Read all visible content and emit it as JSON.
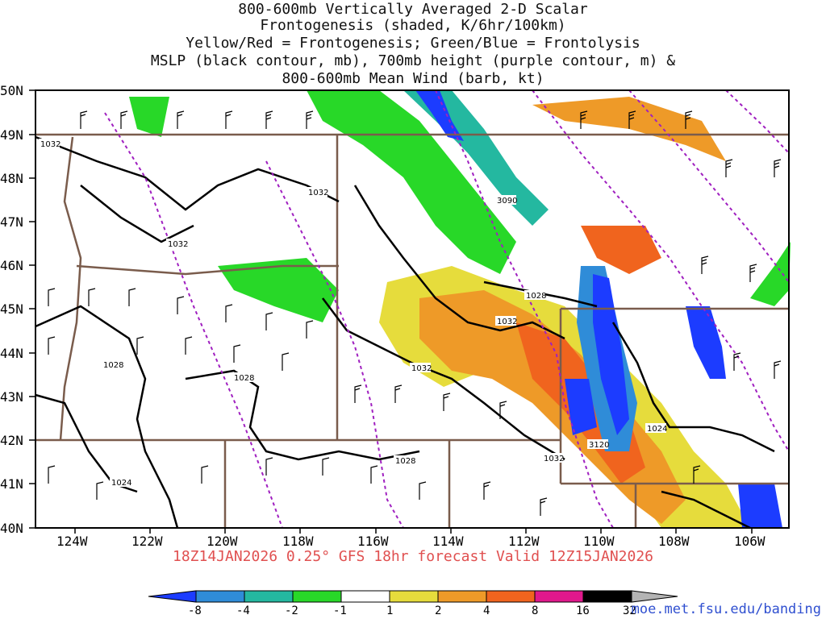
{
  "titles": [
    "800-600mb Vertically Averaged 2-D Scalar",
    "Frontogenesis (shaded, K/6hr/100km)",
    "Yellow/Red = Frontogenesis;  Green/Blue = Frontolysis",
    "MSLP (black contour, mb), 700mb height (purple contour, m) &",
    "800-600mb Mean Wind (barb, kt)"
  ],
  "lat_labels": [
    "50N",
    "49N",
    "48N",
    "47N",
    "46N",
    "45N",
    "44N",
    "43N",
    "42N",
    "41N",
    "40N"
  ],
  "lon_labels": [
    "124W",
    "122W",
    "120W",
    "118W",
    "116W",
    "114W",
    "112W",
    "110W",
    "108W",
    "106W"
  ],
  "contour_labels": {
    "mslp": [
      "1032",
      "1032",
      "1032",
      "1028",
      "1028",
      "1032",
      "1028",
      "1024",
      "1024",
      "1032",
      "1032",
      "1028"
    ],
    "height": [
      "3090",
      "3120"
    ]
  },
  "valid_line": "18Z14JAN2026 0.25° GFS 18hr forecast Valid 12Z15JAN2026",
  "colorbar": {
    "labels": [
      "-8",
      "-4",
      "-2",
      "-1",
      "1",
      "2",
      "4",
      "8",
      "16",
      "32"
    ],
    "colors": [
      "#1c3cff",
      "#2f8cd8",
      "#24b8a0",
      "#16c896",
      "#28d828",
      "#ffffff",
      "#e6dc3c",
      "#ee9a28",
      "#f0641e",
      "#f0365a",
      "#e0188c",
      "#000000",
      "#b4b4b4"
    ]
  },
  "credit": "moe.met.fsu.edu/banding"
}
